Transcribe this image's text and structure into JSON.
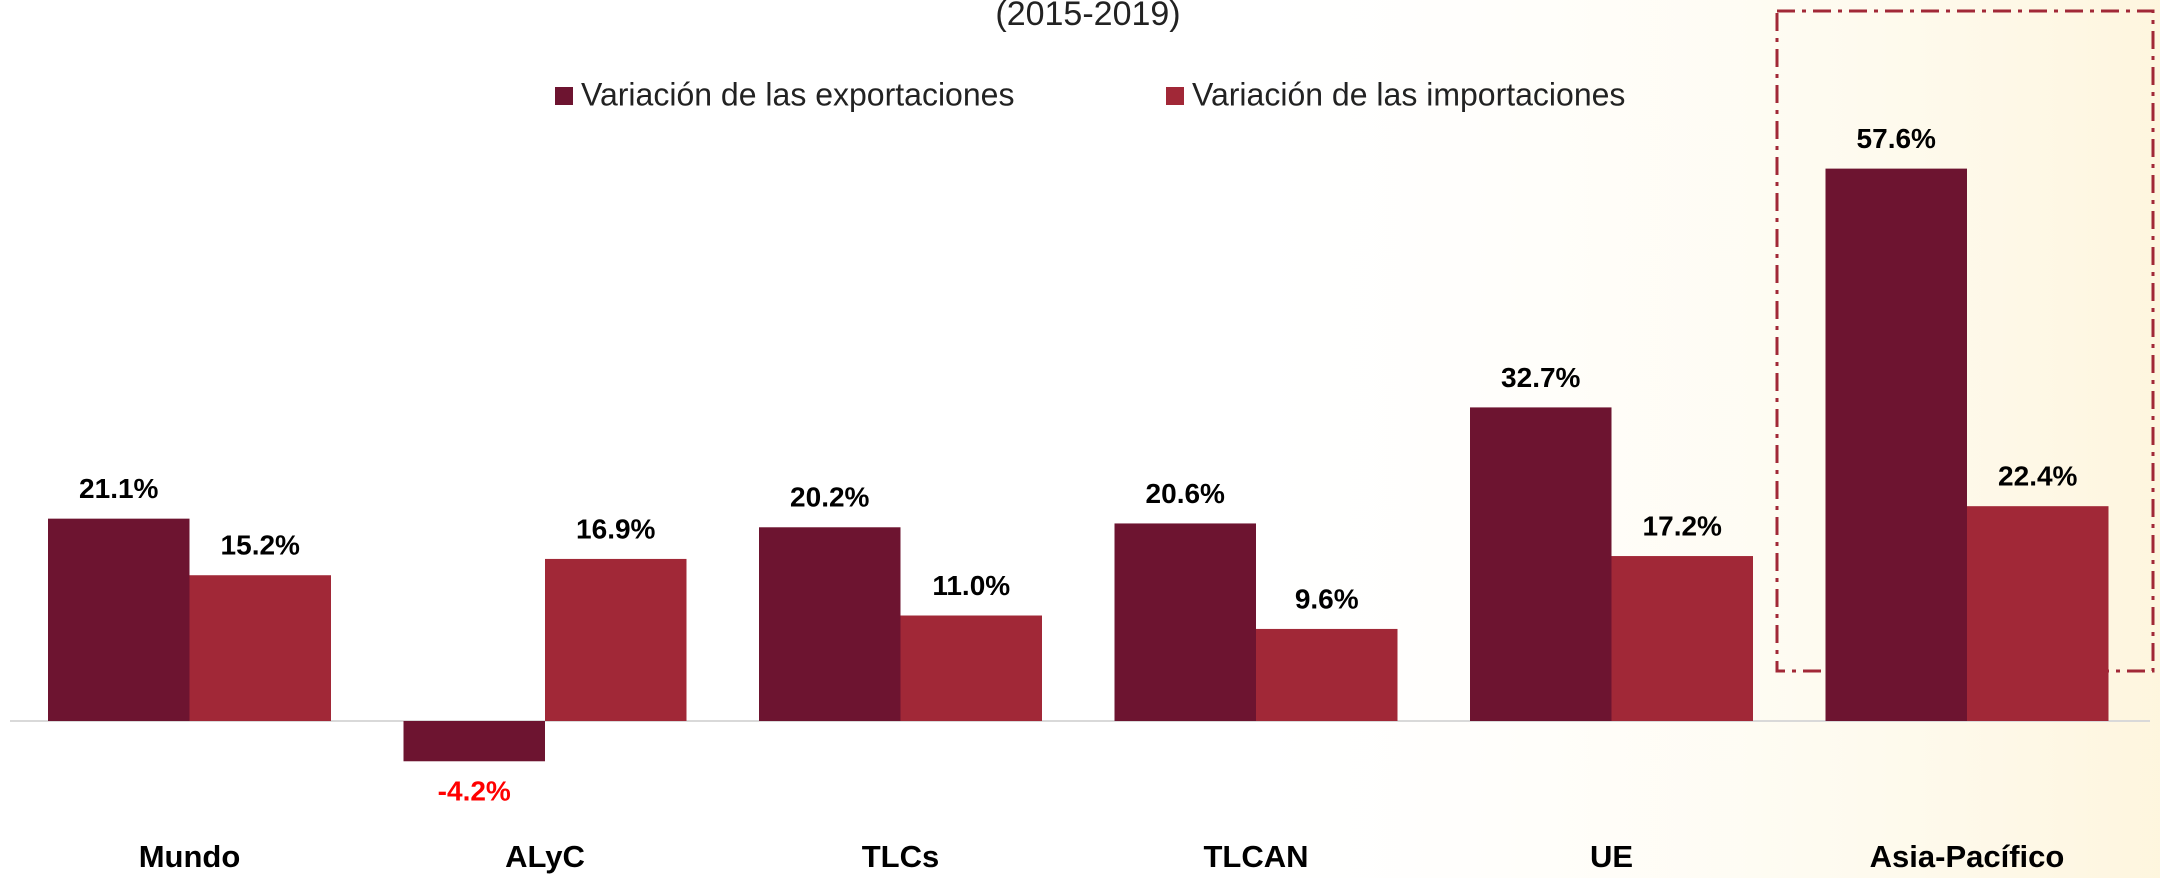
{
  "chart_data": {
    "type": "bar",
    "subtitle": "(2015-2019)",
    "categories": [
      "Mundo",
      "ALyC",
      "TLCs",
      "TLCAN",
      "UE",
      "Asia-Pacífico"
    ],
    "series": [
      {
        "name": "Variación de las exportaciones",
        "color": "#6d1430",
        "values": [
          21.1,
          -4.2,
          20.2,
          20.6,
          32.7,
          57.6
        ],
        "value_labels": [
          "21.1%",
          "-4.2%",
          "20.2%",
          "20.6%",
          "32.7%",
          "57.6%"
        ]
      },
      {
        "name": "Variación de las importaciones",
        "color": "#a12837",
        "values": [
          15.2,
          16.9,
          11.0,
          9.6,
          17.2,
          22.4
        ],
        "value_labels": [
          "15.2%",
          "16.9%",
          "11.0%",
          "9.6%",
          "17.2%",
          "22.4%"
        ]
      }
    ]
  }
}
